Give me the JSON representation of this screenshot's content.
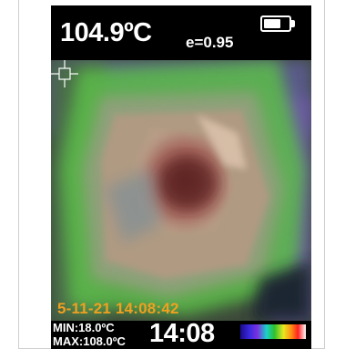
{
  "header": {
    "temperature": "104.9ºC",
    "emissivity": "e=0.95"
  },
  "battery": {
    "level": 0.7
  },
  "overlay": {
    "timestamp": "5-11-21 14:08:42"
  },
  "footer": {
    "min": "MIN:18.0ºC",
    "max": "MAX:108.0ºC",
    "clock": "14:08"
  },
  "palette": {
    "name": "rainbow",
    "colors": [
      "#1a0a8a",
      "#3a2ae0",
      "#7a30e0",
      "#19d2c8",
      "#2ec02e",
      "#e8e820",
      "#ff8c14",
      "#ff2020",
      "#ffffff"
    ]
  },
  "colors": {
    "timestamp": "#f0a020",
    "text": "#ffffff",
    "background": "#000000"
  }
}
